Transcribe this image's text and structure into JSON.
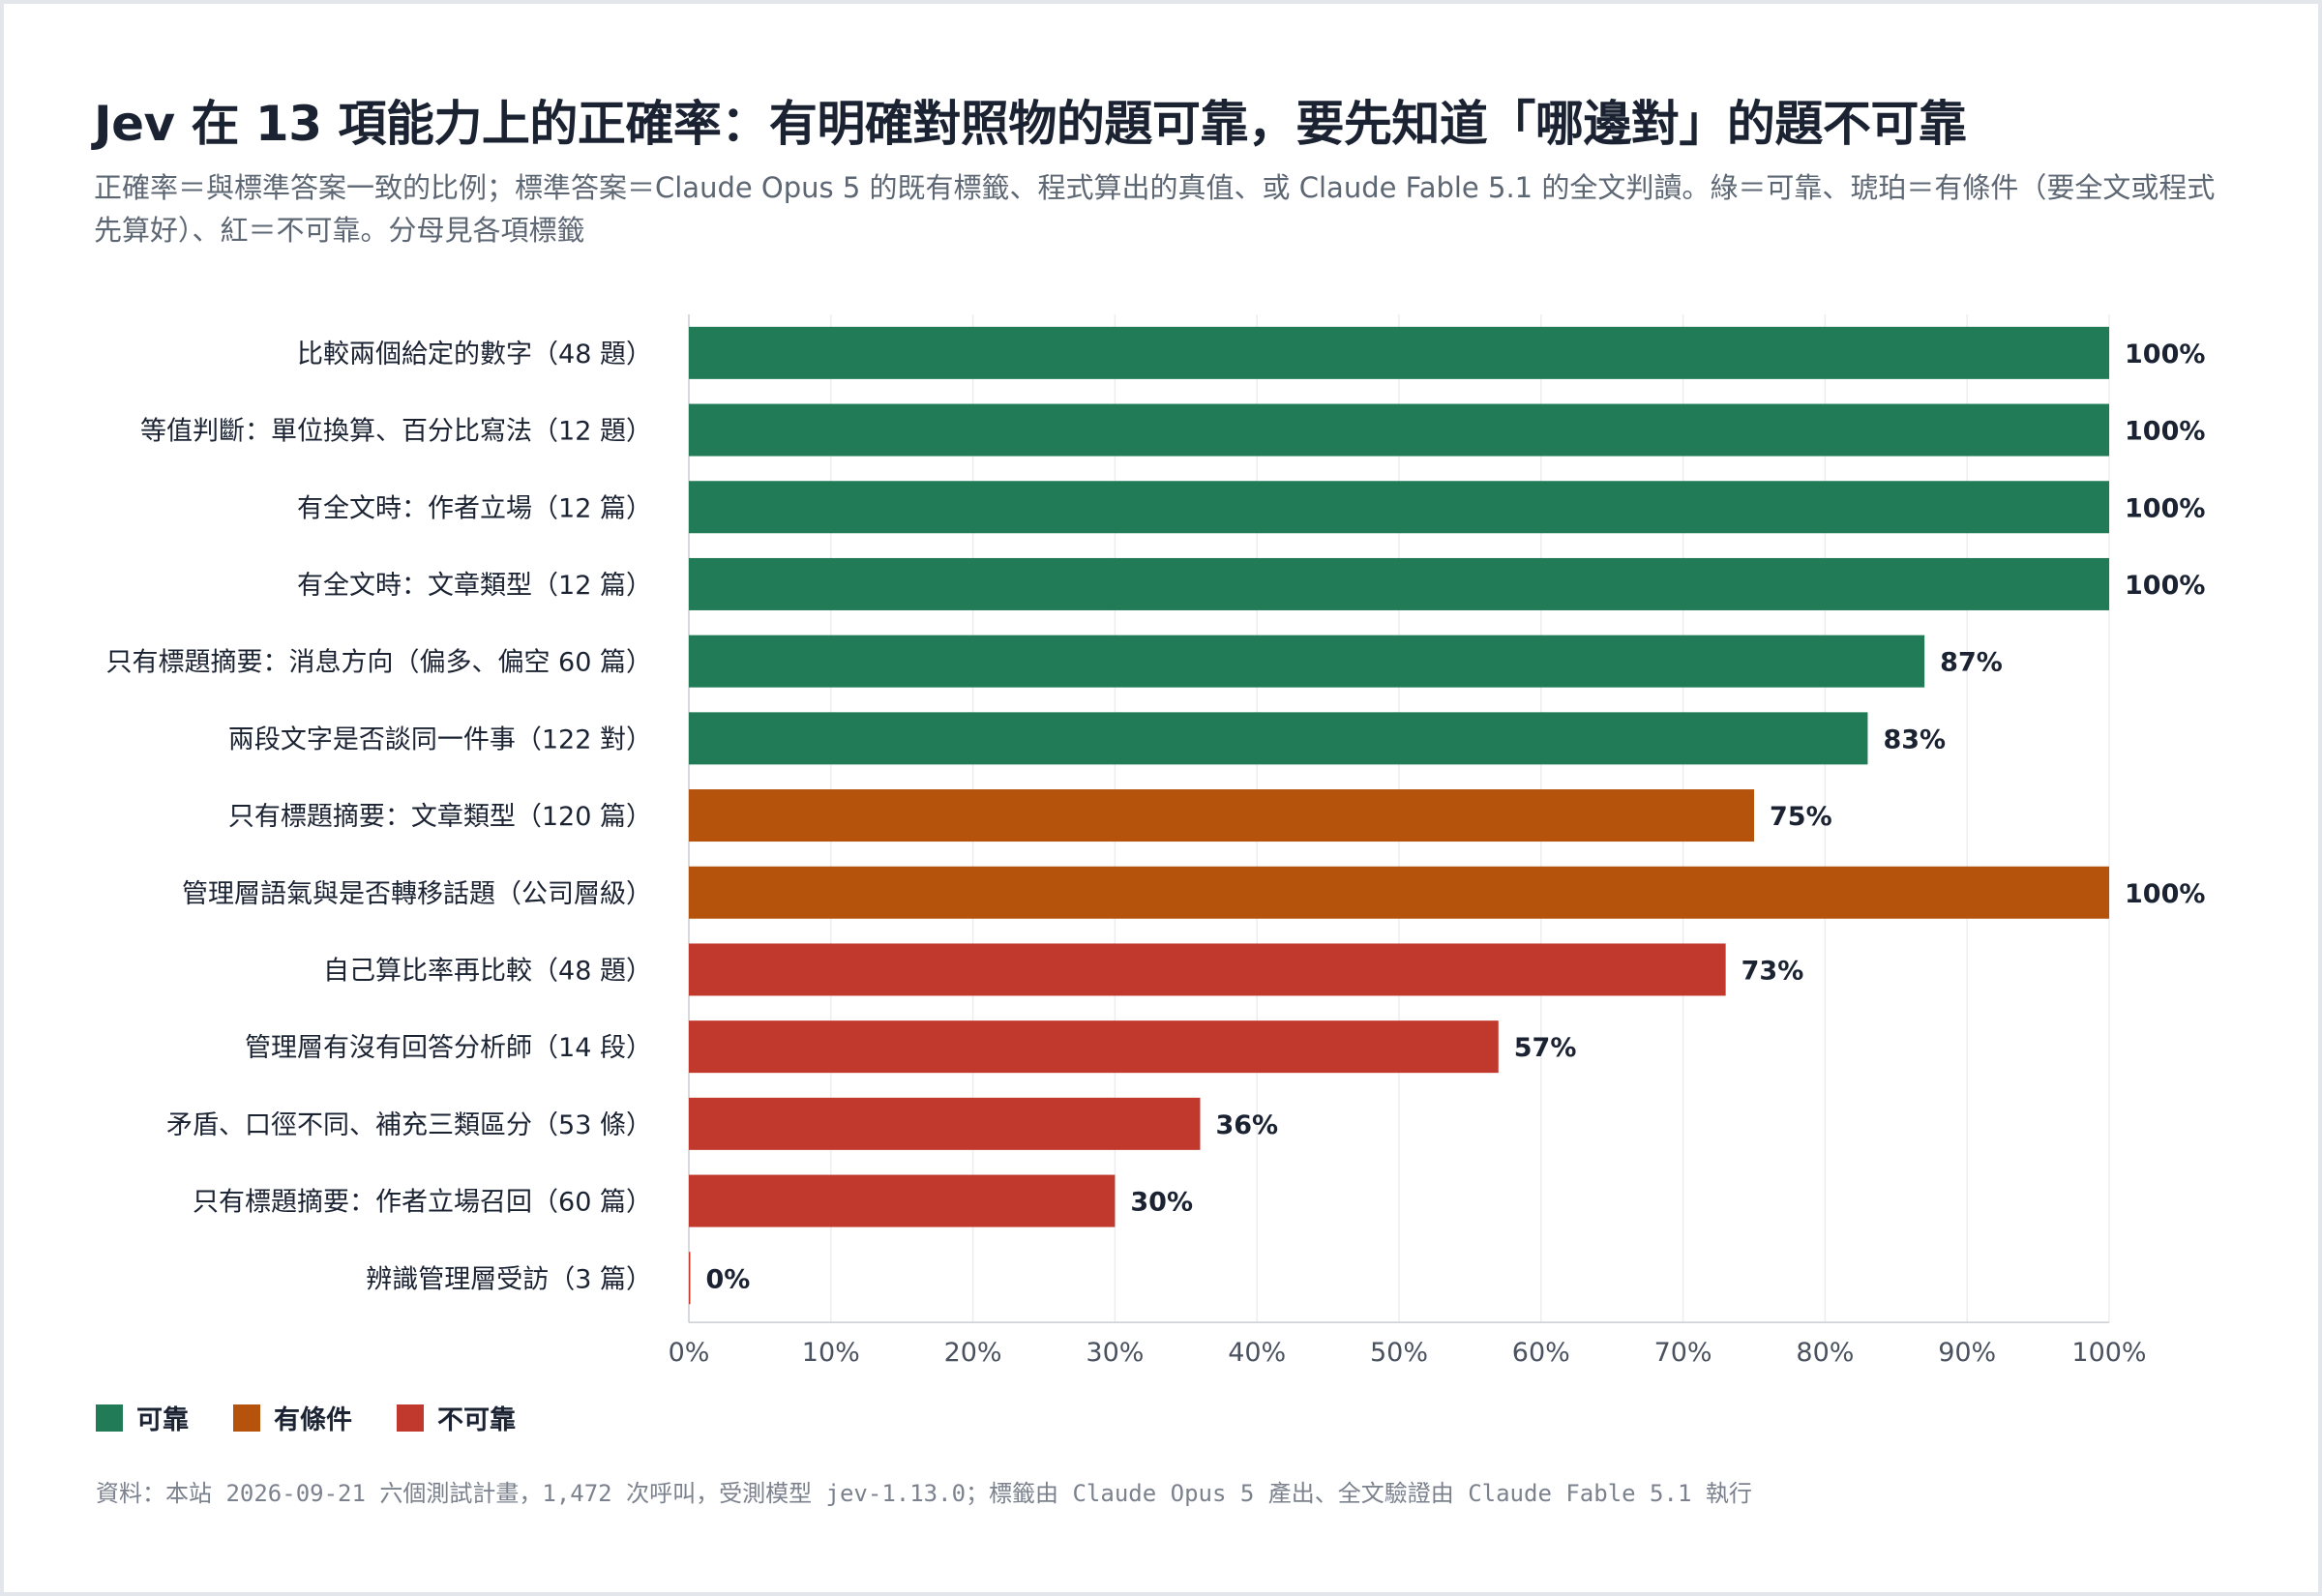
{
  "title": "Jev 在 13 項能力上的正確率：有明確對照物的題可靠，要先知道「哪邊對」的題不可靠",
  "subtitle": "正確率＝與標準答案一致的比例；標準答案＝Claude Opus 5 的既有標籤、程式算出的真值、或 Claude Fable 5.1 的全文判讀。綠＝可靠、琥珀＝有條件（要全文或程式先算好）、紅＝不可靠。分母見各項標籤",
  "colors": {
    "reliable": "#217b57",
    "conditional": "#b5520c",
    "unreliable": "#c1382c"
  },
  "legend": [
    {
      "key": "reliable",
      "label": "可靠"
    },
    {
      "key": "conditional",
      "label": "有條件"
    },
    {
      "key": "unreliable",
      "label": "不可靠"
    }
  ],
  "chart_data": {
    "type": "bar",
    "orientation": "horizontal",
    "xlim": [
      0,
      100
    ],
    "x_unit": "%",
    "x_ticks": [
      "0%",
      "10%",
      "20%",
      "30%",
      "40%",
      "50%",
      "60%",
      "70%",
      "80%",
      "90%",
      "100%"
    ],
    "grid": true,
    "categories": [
      "比較兩個給定的數字（48 題）",
      "等值判斷：單位換算、百分比寫法（12 題）",
      "有全文時：作者立場（12 篇）",
      "有全文時：文章類型（12 篇）",
      "只有標題摘要：消息方向（偏多、偏空 60 篇）",
      "兩段文字是否談同一件事（122 對）",
      "只有標題摘要：文章類型（120 篇）",
      "管理層語氣與是否轉移話題（公司層級）",
      "自己算比率再比較（48 題）",
      "管理層有沒有回答分析師（14 段）",
      "矛盾、口徑不同、補充三類區分（53 條）",
      "只有標題摘要：作者立場召回（60 篇）",
      "辨識管理層受訪（3 篇）"
    ],
    "values": [
      100,
      100,
      100,
      100,
      87,
      83,
      75,
      100,
      73,
      57,
      36,
      30,
      0
    ],
    "value_labels": [
      "100%",
      "100%",
      "100%",
      "100%",
      "87%",
      "83%",
      "75%",
      "100%",
      "73%",
      "57%",
      "36%",
      "30%",
      "0%"
    ],
    "groups": [
      "reliable",
      "reliable",
      "reliable",
      "reliable",
      "reliable",
      "reliable",
      "conditional",
      "conditional",
      "unreliable",
      "unreliable",
      "unreliable",
      "unreliable",
      "unreliable"
    ]
  },
  "footer": "資料：本站 2026-09-21 六個測試計畫，1,472 次呼叫，受測模型 jev-1.13.0；標籤由 Claude Opus 5 產出、全文驗證由 Claude Fable 5.1 執行"
}
